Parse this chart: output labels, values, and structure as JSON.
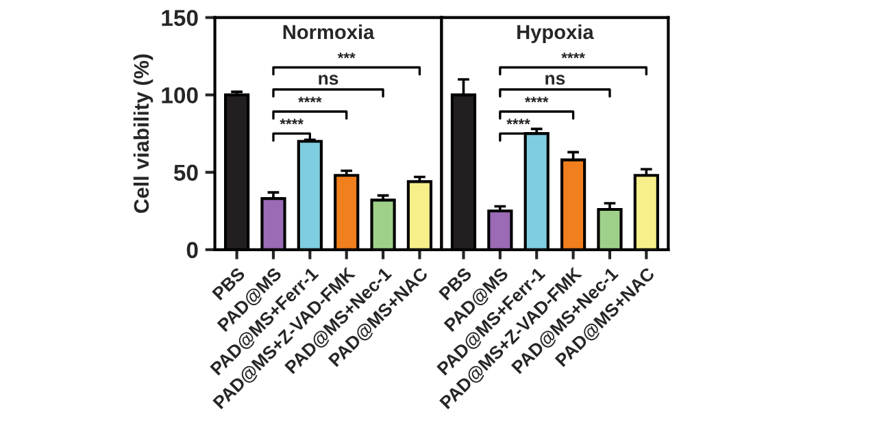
{
  "chart_data": [
    {
      "type": "bar",
      "title": "Normoxia",
      "ylabel": "Cell viability (%)",
      "categories": [
        "PBS",
        "PAD@MS",
        "PAD@MS+Ferr-1",
        "PAD@MS+Z-VAD-FMK",
        "PAD@MS+Nec-1",
        "PAD@MS+NAC"
      ],
      "values": [
        100,
        33,
        70,
        48,
        32,
        44
      ],
      "errors": [
        2,
        4,
        1,
        3,
        3,
        3
      ],
      "colors": [
        "#231f20",
        "#9b6bb5",
        "#7fcde0",
        "#f07f1e",
        "#9fd08a",
        "#f7ef8a"
      ],
      "ylim": [
        0,
        150
      ],
      "yticks": [
        0,
        50,
        100,
        150
      ],
      "annotations": [
        "****",
        "****",
        "ns",
        "***"
      ]
    },
    {
      "type": "bar",
      "title": "Hypoxia",
      "categories": [
        "PBS",
        "PAD@MS",
        "PAD@MS+Ferr-1",
        "PAD@MS+Z-VAD-FMK",
        "PAD@MS+Nec-1",
        "PAD@MS+NAC"
      ],
      "values": [
        100,
        25,
        75,
        58,
        26,
        48
      ],
      "errors": [
        10,
        3,
        3,
        5,
        4,
        4
      ],
      "colors": [
        "#231f20",
        "#9b6bb5",
        "#7fcde0",
        "#f07f1e",
        "#9fd08a",
        "#f7ef8a"
      ],
      "ylim": [
        0,
        150
      ],
      "yticks": [
        0,
        50,
        100,
        150
      ],
      "tick_labels": "x",
      "annotations": [
        "****",
        "****",
        "ns",
        "****"
      ]
    }
  ]
}
